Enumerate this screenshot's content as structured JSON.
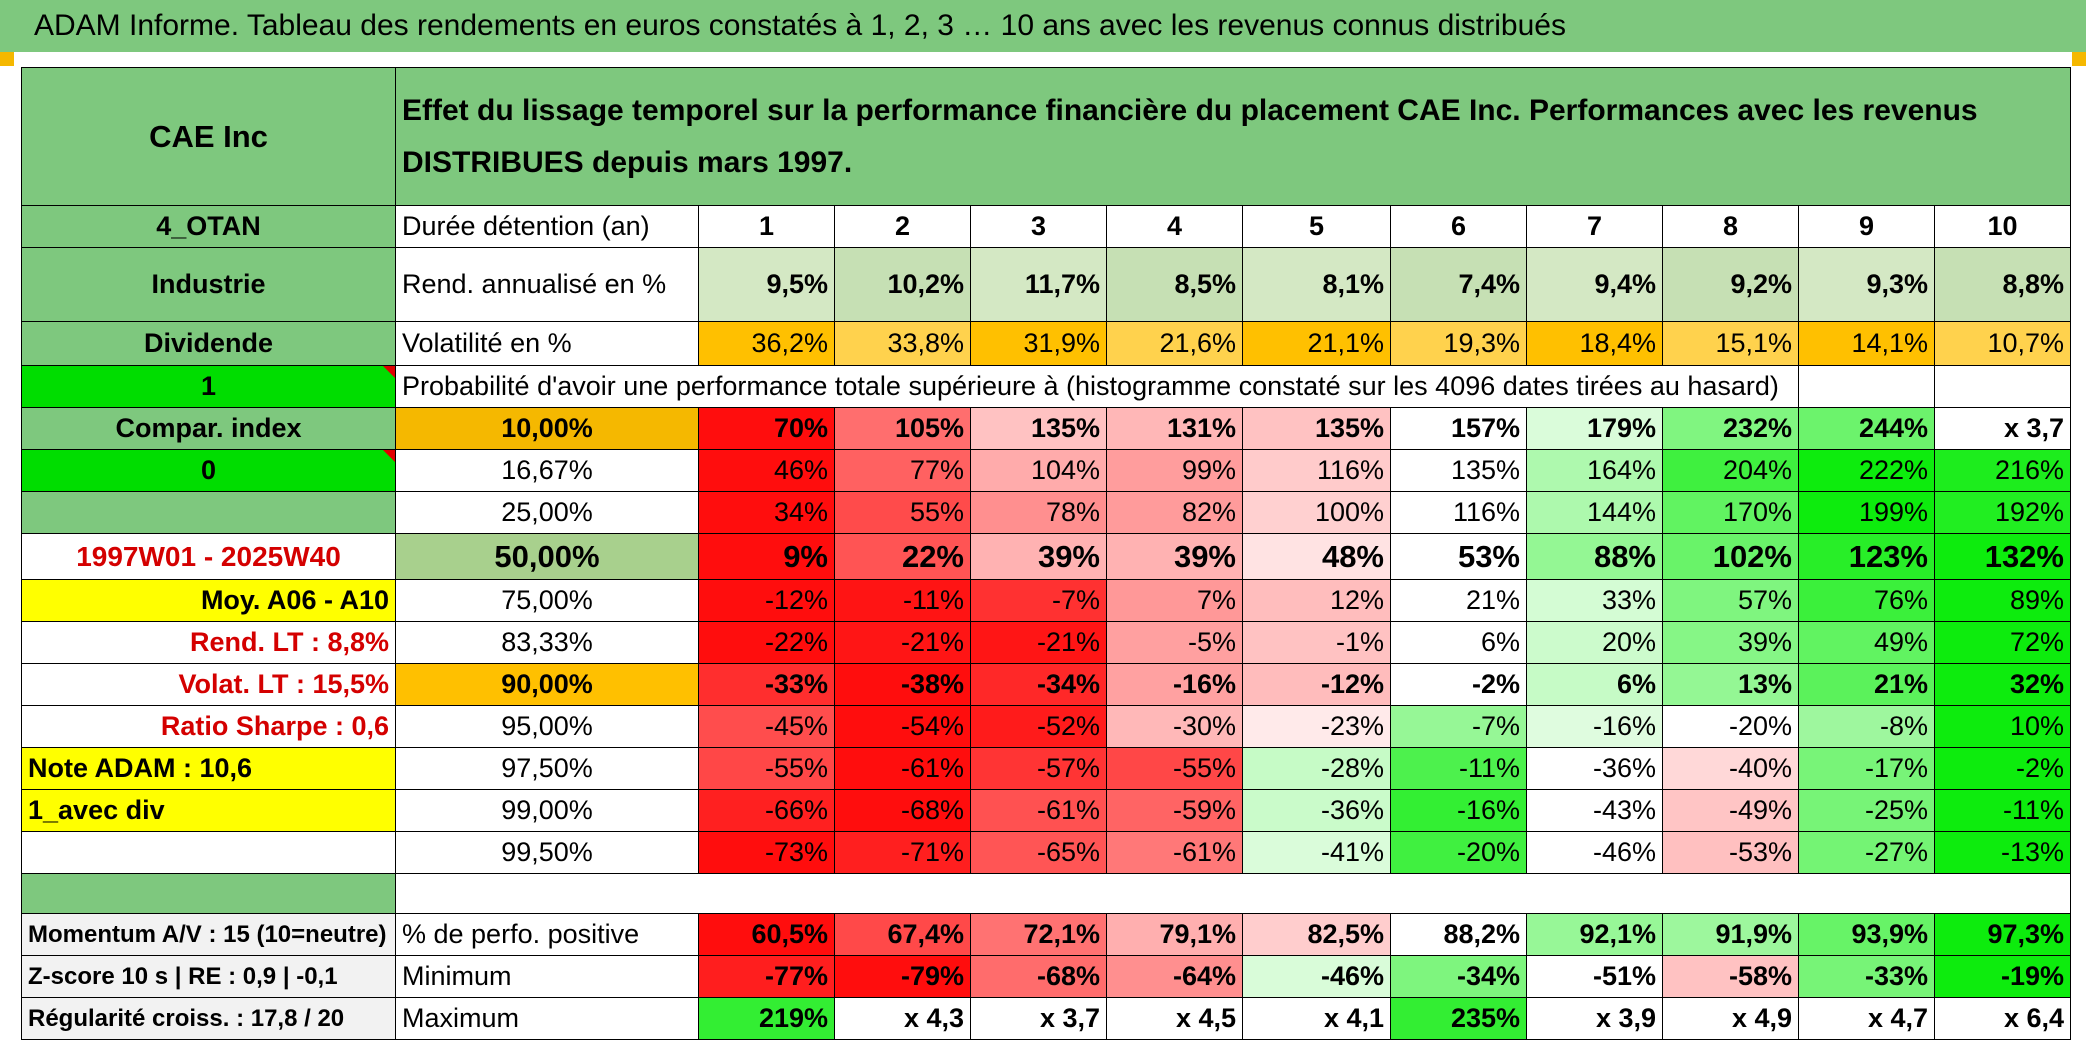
{
  "title": "ADAM Informe. Tableau des rendements en euros constatés à 1, 2, 3 … 10 ans avec les revenus connus distribués",
  "colors": {
    "green_header": "#7ec87e",
    "bright_green": "#00dd00",
    "orange": "#ffc000",
    "yellow": "#ffff00",
    "red_text": "#d40000"
  },
  "left": {
    "name": "CAE Inc",
    "code": "4_OTAN",
    "sector": "Industrie",
    "type": "Dividende",
    "flag1": "1",
    "compar": "Compar. index",
    "flag2": "0",
    "period": "1997W01 - 2025W40",
    "moy": "Moy. A06 - A10",
    "rend_lt": "Rend. LT :   8,8%",
    "volat_lt": "Volat. LT :   15,5%",
    "sharpe": "Ratio Sharpe :   0,6",
    "note": "Note ADAM : 10,6",
    "avec_div": "1_avec div",
    "momentum": "Momentum A/V : 15 (10=neutre)",
    "zscore": "Z-score 10 s | RE : 0,9 | -0,1",
    "regularite": "Régularité croiss. : 17,8 / 20"
  },
  "header_text": "Effet du lissage temporel sur la performance financière du placement CAE Inc. Performances avec les revenus DISTRIBUES depuis mars 1997.",
  "labels": {
    "duree": "Durée détention (an)",
    "rend": "Rend. annualisé en %",
    "volat": "Volatilité en %",
    "proba": "Probabilité d'avoir une performance totale supérieure à (histogramme constaté sur les 4096 dates tirées au hasard)",
    "positive": "% de perfo. positive",
    "minimum": "Minimum",
    "maximum": "Maximum"
  },
  "years": [
    "1",
    "2",
    "3",
    "4",
    "5",
    "6",
    "7",
    "8",
    "9",
    "10"
  ],
  "rend": [
    "9,5%",
    "10,2%",
    "11,7%",
    "8,5%",
    "8,1%",
    "7,4%",
    "9,4%",
    "9,2%",
    "9,3%",
    "8,8%"
  ],
  "volat": [
    "36,2%",
    "33,8%",
    "31,9%",
    "21,6%",
    "21,1%",
    "19,3%",
    "18,4%",
    "15,1%",
    "14,1%",
    "10,7%"
  ],
  "perc_rows": [
    {
      "level": "10,00%",
      "values": [
        "70%",
        "105%",
        "135%",
        "131%",
        "135%",
        "157%",
        "179%",
        "232%",
        "244%",
        "x 3,7"
      ]
    },
    {
      "level": "16,67%",
      "values": [
        "46%",
        "77%",
        "104%",
        "99%",
        "116%",
        "135%",
        "164%",
        "204%",
        "222%",
        "216%"
      ]
    },
    {
      "level": "25,00%",
      "values": [
        "34%",
        "55%",
        "78%",
        "82%",
        "100%",
        "116%",
        "144%",
        "170%",
        "199%",
        "192%"
      ]
    },
    {
      "level": "50,00%",
      "values": [
        "9%",
        "22%",
        "39%",
        "39%",
        "48%",
        "53%",
        "88%",
        "102%",
        "123%",
        "132%"
      ]
    },
    {
      "level": "75,00%",
      "values": [
        "-12%",
        "-11%",
        "-7%",
        "7%",
        "12%",
        "21%",
        "33%",
        "57%",
        "76%",
        "89%"
      ]
    },
    {
      "level": "83,33%",
      "values": [
        "-22%",
        "-21%",
        "-21%",
        "-5%",
        "-1%",
        "6%",
        "20%",
        "39%",
        "49%",
        "72%"
      ]
    },
    {
      "level": "90,00%",
      "values": [
        "-33%",
        "-38%",
        "-34%",
        "-16%",
        "-12%",
        "-2%",
        "6%",
        "13%",
        "21%",
        "32%"
      ]
    },
    {
      "level": "95,00%",
      "values": [
        "-45%",
        "-54%",
        "-52%",
        "-30%",
        "-23%",
        "-7%",
        "-16%",
        "-20%",
        "-8%",
        "10%"
      ]
    },
    {
      "level": "97,50%",
      "values": [
        "-55%",
        "-61%",
        "-57%",
        "-55%",
        "-28%",
        "-11%",
        "-36%",
        "-40%",
        "-17%",
        "-2%"
      ]
    },
    {
      "level": "99,00%",
      "values": [
        "-66%",
        "-68%",
        "-61%",
        "-59%",
        "-36%",
        "-16%",
        "-43%",
        "-49%",
        "-25%",
        "-11%"
      ]
    },
    {
      "level": "99,50%",
      "values": [
        "-73%",
        "-71%",
        "-65%",
        "-61%",
        "-41%",
        "-20%",
        "-46%",
        "-53%",
        "-27%",
        "-13%"
      ]
    }
  ],
  "positive": [
    "60,5%",
    "67,4%",
    "72,1%",
    "79,1%",
    "82,5%",
    "88,2%",
    "92,1%",
    "91,9%",
    "93,9%",
    "97,3%"
  ],
  "minimum": [
    "-77%",
    "-79%",
    "-68%",
    "-64%",
    "-46%",
    "-34%",
    "-51%",
    "-58%",
    "-33%",
    "-19%"
  ],
  "maximum": [
    "219%",
    "x 4,3",
    "x 3,7",
    "x 4,5",
    "x 4,1",
    "235%",
    "x 3,9",
    "x 4,9",
    "x 4,7",
    "x 6,4"
  ]
}
